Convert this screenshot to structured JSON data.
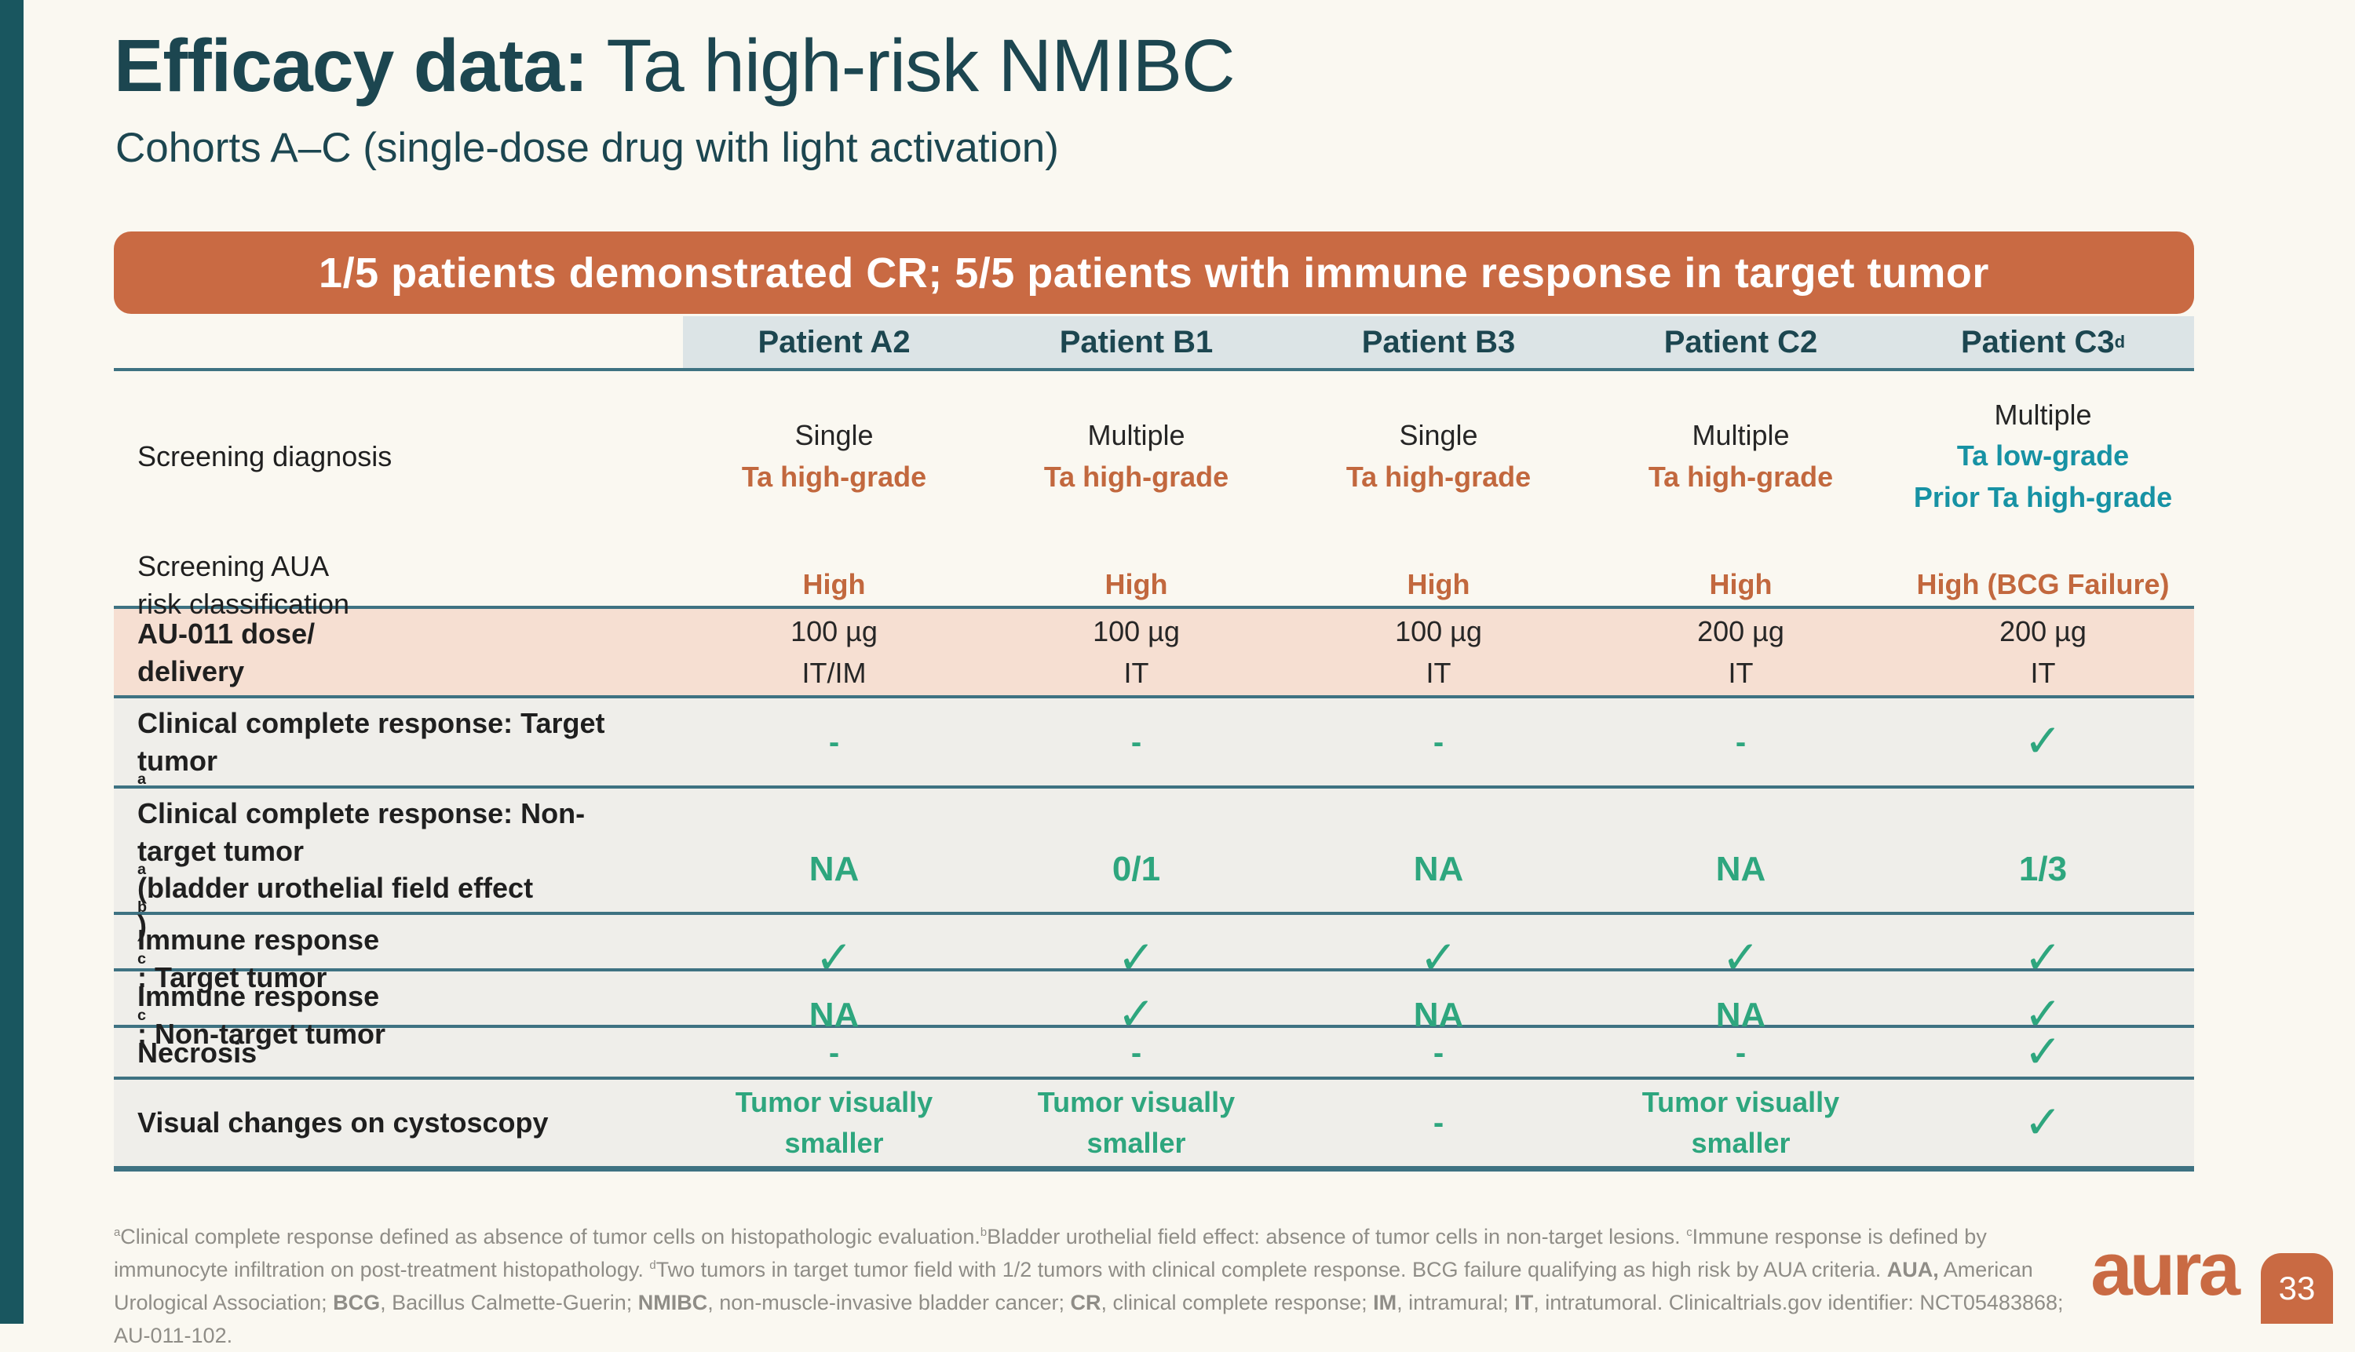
{
  "slide": {
    "title_bold": "Efficacy data:",
    "title_rest": " Ta high-risk NMIBC",
    "subtitle": "Cohorts A–C (single-dose drug with light activation)",
    "banner": "1/5 patients demonstrated CR; 5/5 patients with immune response in target tumor",
    "logo_text": "aura",
    "page_number": "33"
  },
  "colors": {
    "accent_orange": "#c96a43",
    "title_teal": "#1c4650",
    "teal_text": "#1792a4",
    "green": "#2ea67e",
    "rule_teal": "#3e7282",
    "header_bg": "#dce4e6",
    "row_bg": "#efeeea",
    "dose_row_bg": "#f6dfd2",
    "page_bg": "#faf8f1",
    "footnote_gray": "#8f8d87"
  },
  "table": {
    "columns": [
      "Patient A2",
      "Patient B1",
      "Patient B3",
      "Patient C2",
      "Patient C3^{d}"
    ],
    "rows": [
      {
        "label": "Screening diagnosis",
        "bold": false,
        "bg": "none",
        "cells": [
          {
            "lines": [
              {
                "t": "Single",
                "s": "plain"
              },
              {
                "t": "Ta high-grade",
                "s": "orange"
              }
            ]
          },
          {
            "lines": [
              {
                "t": "Multiple",
                "s": "plain"
              },
              {
                "t": "Ta high-grade",
                "s": "orange"
              }
            ]
          },
          {
            "lines": [
              {
                "t": "Single",
                "s": "plain"
              },
              {
                "t": "Ta high-grade",
                "s": "orange"
              }
            ]
          },
          {
            "lines": [
              {
                "t": "Multiple",
                "s": "plain"
              },
              {
                "t": "Ta high-grade",
                "s": "orange"
              }
            ]
          },
          {
            "lines": [
              {
                "t": "Multiple",
                "s": "plain"
              },
              {
                "t": "Ta low-grade",
                "s": "teal"
              },
              {
                "t": "Prior Ta high-grade",
                "s": "teal"
              }
            ]
          }
        ]
      },
      {
        "label": "Screening AUA\nrisk classification",
        "bold": false,
        "bg": "none",
        "cells": [
          {
            "lines": [
              {
                "t": "High",
                "s": "orange"
              }
            ]
          },
          {
            "lines": [
              {
                "t": "High",
                "s": "orange"
              }
            ]
          },
          {
            "lines": [
              {
                "t": "High",
                "s": "orange"
              }
            ]
          },
          {
            "lines": [
              {
                "t": "High",
                "s": "orange"
              }
            ]
          },
          {
            "lines": [
              {
                "t": "High (BCG Failure)",
                "s": "orange"
              }
            ]
          }
        ]
      },
      {
        "label": "AU-011 dose/\ndelivery",
        "bold": true,
        "bg": "pink",
        "cells": [
          {
            "lines": [
              {
                "t": "100 µg",
                "s": "plain"
              },
              {
                "t": "IT/IM",
                "s": "plain"
              }
            ]
          },
          {
            "lines": [
              {
                "t": "100 µg",
                "s": "plain"
              },
              {
                "t": "IT",
                "s": "plain"
              }
            ]
          },
          {
            "lines": [
              {
                "t": "100 µg",
                "s": "plain"
              },
              {
                "t": "IT",
                "s": "plain"
              }
            ]
          },
          {
            "lines": [
              {
                "t": "200 µg",
                "s": "plain"
              },
              {
                "t": "IT",
                "s": "plain"
              }
            ]
          },
          {
            "lines": [
              {
                "t": "200 µg",
                "s": "plain"
              },
              {
                "t": "IT",
                "s": "plain"
              }
            ]
          }
        ]
      },
      {
        "label": "Clinical complete response: Target tumor^{a}",
        "bold": true,
        "bg": "gray",
        "cells": [
          {
            "lines": [
              {
                "t": "-",
                "s": "dash"
              }
            ]
          },
          {
            "lines": [
              {
                "t": "-",
                "s": "dash"
              }
            ]
          },
          {
            "lines": [
              {
                "t": "-",
                "s": "dash"
              }
            ]
          },
          {
            "lines": [
              {
                "t": "-",
                "s": "dash"
              }
            ]
          },
          {
            "lines": [
              {
                "t": "✓",
                "s": "check"
              }
            ]
          }
        ]
      },
      {
        "label": "Clinical complete response: Non-target tumor^{a} (bladder urothelial field effect^{b})",
        "bold": true,
        "bg": "gray",
        "cells": [
          {
            "lines": [
              {
                "t": "NA",
                "s": "greenbig"
              }
            ]
          },
          {
            "lines": [
              {
                "t": "0/1",
                "s": "greenbig"
              }
            ]
          },
          {
            "lines": [
              {
                "t": "NA",
                "s": "greenbig"
              }
            ]
          },
          {
            "lines": [
              {
                "t": "NA",
                "s": "greenbig"
              }
            ]
          },
          {
            "lines": [
              {
                "t": "1/3",
                "s": "greenbig"
              }
            ]
          }
        ]
      },
      {
        "label": "Immune response^{c}: Target tumor",
        "bold": true,
        "bg": "gray",
        "cells": [
          {
            "lines": [
              {
                "t": "✓",
                "s": "check"
              }
            ]
          },
          {
            "lines": [
              {
                "t": "✓",
                "s": "check"
              }
            ]
          },
          {
            "lines": [
              {
                "t": "✓",
                "s": "check"
              }
            ]
          },
          {
            "lines": [
              {
                "t": "✓",
                "s": "check"
              }
            ]
          },
          {
            "lines": [
              {
                "t": "✓",
                "s": "check"
              }
            ]
          }
        ]
      },
      {
        "label": "Immune response^{c}: Non-target tumor",
        "bold": true,
        "bg": "gray",
        "cells": [
          {
            "lines": [
              {
                "t": "NA",
                "s": "greenbig"
              }
            ]
          },
          {
            "lines": [
              {
                "t": "✓",
                "s": "check"
              }
            ]
          },
          {
            "lines": [
              {
                "t": "NA",
                "s": "greenbig"
              }
            ]
          },
          {
            "lines": [
              {
                "t": "NA",
                "s": "greenbig"
              }
            ]
          },
          {
            "lines": [
              {
                "t": "✓",
                "s": "check"
              }
            ]
          }
        ]
      },
      {
        "label": "Necrosis",
        "bold": true,
        "bg": "gray",
        "cells": [
          {
            "lines": [
              {
                "t": "-",
                "s": "dash"
              }
            ]
          },
          {
            "lines": [
              {
                "t": "-",
                "s": "dash"
              }
            ]
          },
          {
            "lines": [
              {
                "t": "-",
                "s": "dash"
              }
            ]
          },
          {
            "lines": [
              {
                "t": "-",
                "s": "dash"
              }
            ]
          },
          {
            "lines": [
              {
                "t": "✓",
                "s": "check"
              }
            ]
          }
        ]
      },
      {
        "label": "Visual changes on cystoscopy",
        "bold": true,
        "bg": "gray",
        "cells": [
          {
            "lines": [
              {
                "t": "Tumor visually",
                "s": "green"
              },
              {
                "t": "smaller",
                "s": "green"
              }
            ]
          },
          {
            "lines": [
              {
                "t": "Tumor visually",
                "s": "green"
              },
              {
                "t": "smaller",
                "s": "green"
              }
            ]
          },
          {
            "lines": [
              {
                "t": "-",
                "s": "dash"
              }
            ]
          },
          {
            "lines": [
              {
                "t": "Tumor visually",
                "s": "green"
              },
              {
                "t": "smaller",
                "s": "green"
              }
            ]
          },
          {
            "lines": [
              {
                "t": "✓",
                "s": "check"
              }
            ]
          }
        ]
      }
    ]
  },
  "footnote": {
    "segments": [
      {
        "t": "^{a}Clinical complete response defined as absence of tumor cells on histopathologic evaluation.^{b}Bladder urothelial field effect: absence of tumor cells in non-target lesions. ^{c}Immune response is defined by immunocyte infiltration on post-treatment histopathology. ^{d}Two tumors in target tumor field with 1/2 tumors with clinical complete response.  BCG failure qualifying as high risk by AUA criteria. ",
        "b": false
      },
      {
        "t": "AUA,",
        "b": true
      },
      {
        "t": " American Urological Association; ",
        "b": false
      },
      {
        "t": "BCG",
        "b": true
      },
      {
        "t": ", Bacillus Calmette-Guerin; ",
        "b": false
      },
      {
        "t": "NMIBC",
        "b": true
      },
      {
        "t": ", non-muscle-invasive bladder cancer; ",
        "b": false
      },
      {
        "t": "CR",
        "b": true
      },
      {
        "t": ", clinical complete response; ",
        "b": false
      },
      {
        "t": "IM",
        "b": true
      },
      {
        "t": ", intramural; ",
        "b": false
      },
      {
        "t": "IT",
        "b": true
      },
      {
        "t": ", intratumoral. Clinicaltrials.gov identifier: NCT05483868; AU-011-102.",
        "b": false
      }
    ]
  }
}
